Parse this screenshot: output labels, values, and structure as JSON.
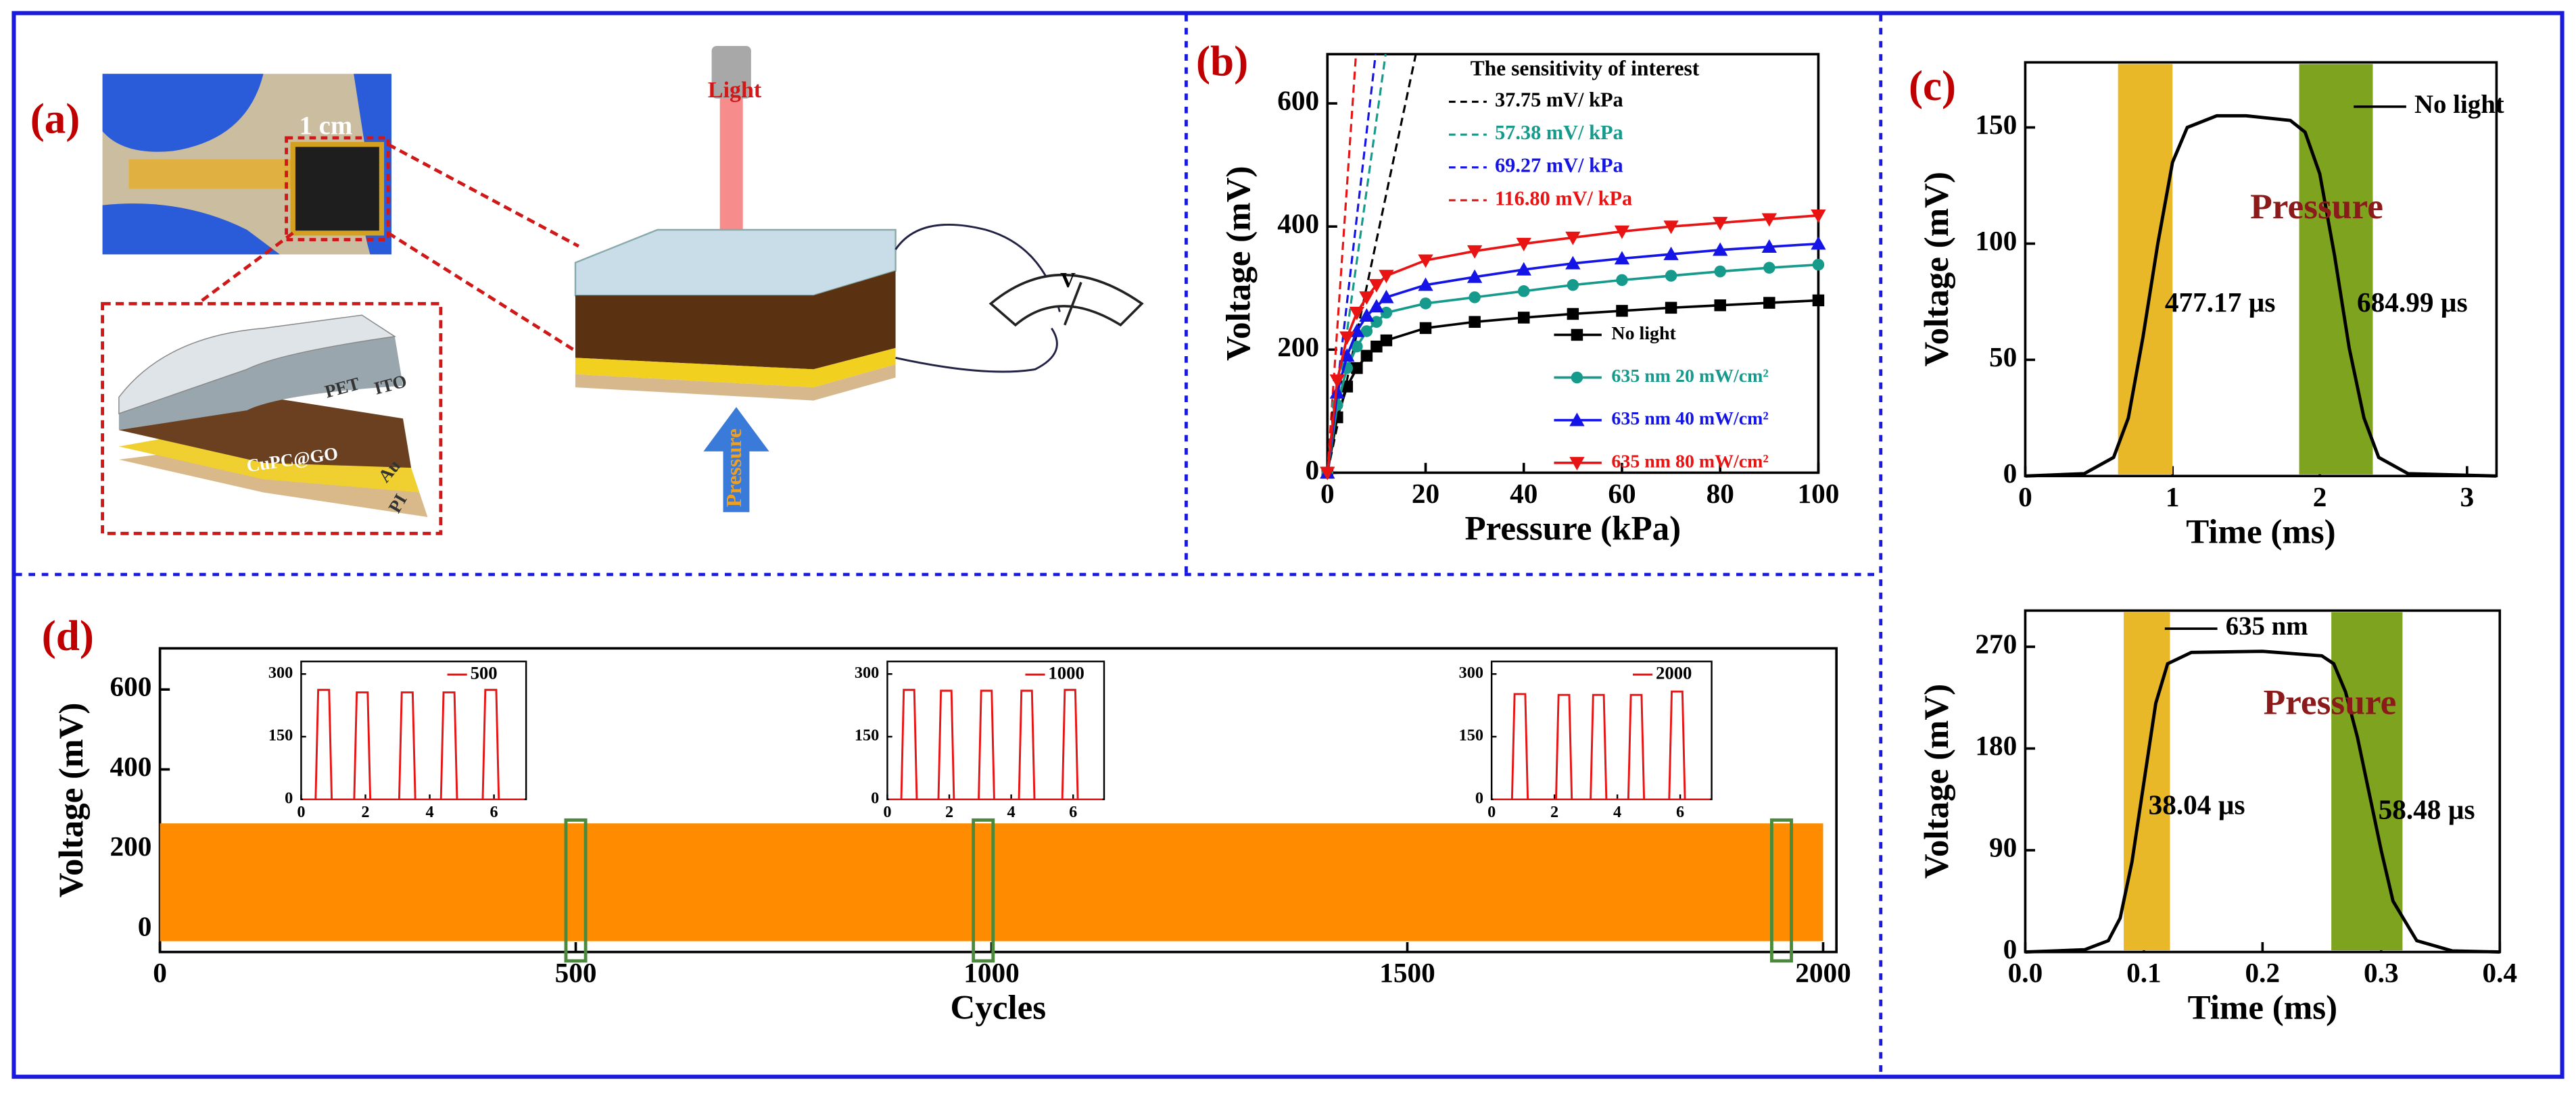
{
  "panel_a": {
    "label": "(a)",
    "scale": "1 cm",
    "light": "Light",
    "pressure": "Pressure",
    "layers": [
      "PET",
      "ITO",
      "CuPC@GO",
      "Au",
      "PI"
    ],
    "meter": "V"
  },
  "chart_data": [
    {
      "type": "line",
      "label": "(b)",
      "xlabel": "Pressure (kPa)",
      "ylabel": "Voltage (mV)",
      "xlim": [
        0,
        100
      ],
      "ylim": [
        0,
        680
      ],
      "xticks": [
        0,
        20,
        40,
        60,
        80,
        100
      ],
      "yticks": [
        0,
        200,
        400,
        600
      ],
      "x": [
        0,
        2,
        4,
        6,
        8,
        10,
        12,
        20,
        30,
        40,
        50,
        60,
        70,
        80,
        90,
        100
      ],
      "series": [
        {
          "name": "No light",
          "color": "#000000",
          "marker": "square",
          "values": [
            0,
            90,
            140,
            170,
            190,
            205,
            215,
            235,
            245,
            252,
            258,
            263,
            268,
            272,
            276,
            280
          ]
        },
        {
          "name": "635 nm 20 mW/cm²",
          "color": "#159a8c",
          "marker": "circle",
          "values": [
            0,
            110,
            170,
            205,
            230,
            245,
            260,
            275,
            285,
            295,
            305,
            313,
            320,
            327,
            333,
            338
          ]
        },
        {
          "name": "635 nm 40 mW/cm²",
          "color": "#1414e6",
          "marker": "triangle-up",
          "values": [
            0,
            130,
            190,
            230,
            255,
            270,
            285,
            305,
            318,
            330,
            340,
            348,
            355,
            362,
            367,
            372
          ]
        },
        {
          "name": "635 nm 80 mW/cm²",
          "color": "#e81414",
          "marker": "triangle-down",
          "values": [
            0,
            150,
            220,
            260,
            285,
            305,
            320,
            345,
            360,
            372,
            382,
            392,
            400,
            406,
            412,
            418
          ]
        }
      ],
      "legend": "lower right",
      "sensitivity": {
        "title": "The sensitivity of interest",
        "lines": [
          {
            "slope": {
              "value": 37.75,
              "label": "37.75 mV/ kPa"
            },
            "color": "#000000"
          },
          {
            "slope": {
              "value": 57.38,
              "label": "57.38 mV/ kPa"
            },
            "color": "#159a8c"
          },
          {
            "slope": {
              "value": 69.27,
              "label": "69.27 mV/ kPa"
            },
            "color": "#1414e6"
          },
          {
            "slope": {
              "value": 116.8,
              "label": "116.80 mV/ kPa"
            },
            "color": "#e81414"
          }
        ]
      }
    },
    {
      "type": "line",
      "label": "(c)",
      "xlabel": "Time (ms)",
      "ylabel": "Voltage (mV)",
      "xlim": [
        0,
        3.2
      ],
      "ylim": [
        0,
        178
      ],
      "xticks": [
        0,
        1,
        2,
        3
      ],
      "yticks": [
        0,
        50,
        100,
        150
      ],
      "x": [
        0,
        0.4,
        0.6,
        0.7,
        0.8,
        0.9,
        1.0,
        1.1,
        1.3,
        1.5,
        1.8,
        1.9,
        2.0,
        2.1,
        2.2,
        2.3,
        2.4,
        2.6,
        3.2
      ],
      "series": [
        {
          "name": "No light",
          "color": "#000000",
          "values": [
            0,
            1,
            8,
            25,
            60,
            100,
            135,
            150,
            155,
            155,
            153,
            148,
            130,
            95,
            55,
            25,
            8,
            1,
            0
          ]
        }
      ],
      "bands": [
        {
          "xlim": [
            0.63,
            1.0
          ],
          "color": "#e8b828"
        },
        {
          "xlim": [
            1.86,
            2.36
          ],
          "color": "#7da31f"
        }
      ],
      "annotations": [
        "Pressure",
        "477.17 µs",
        "684.99 µs"
      ]
    },
    {
      "type": "line",
      "xlabel": "Time (ms)",
      "ylabel": "Voltage (mV)",
      "xlim": [
        0,
        0.4
      ],
      "ylim": [
        0,
        302
      ],
      "xticks": [
        {
          "value": 0,
          "label": "0.0"
        },
        0.1,
        0.2,
        0.3,
        0.4
      ],
      "yticks": [
        0,
        90,
        180,
        270
      ],
      "x": [
        0,
        0.05,
        0.07,
        0.08,
        0.09,
        0.1,
        0.11,
        0.12,
        0.14,
        0.2,
        0.25,
        0.26,
        0.27,
        0.28,
        0.29,
        0.3,
        0.31,
        0.33,
        0.36,
        0.4
      ],
      "series": [
        {
          "name": "635 nm",
          "color": "#000000",
          "values": [
            0,
            2,
            10,
            30,
            80,
            150,
            220,
            255,
            265,
            266,
            262,
            255,
            230,
            190,
            140,
            90,
            45,
            10,
            1,
            0
          ]
        }
      ],
      "bands": [
        {
          "xlim": [
            0.083,
            0.122
          ],
          "color": "#e8b828"
        },
        {
          "xlim": [
            0.258,
            0.318
          ],
          "color": "#7da31f"
        }
      ],
      "annotations": [
        "Pressure",
        "38.04 µs",
        "58.48 µs"
      ]
    },
    {
      "type": "area",
      "label": "(d)",
      "xlabel": "Cycles",
      "ylabel": "Voltage (mV)",
      "xlim": [
        0,
        2016
      ],
      "ylim": [
        -57,
        703
      ],
      "xticks": [
        0,
        500,
        1000,
        1500,
        2000
      ],
      "yticks": [
        0,
        200,
        400,
        600
      ],
      "x": [
        0,
        2000
      ],
      "series": [
        {
          "color": "#ff8c00",
          "values": [
            265,
            265
          ],
          "low": [
            -30,
            -30
          ]
        }
      ],
      "highlights": [
        500,
        990,
        1950
      ],
      "highlight_color": "#4a8a3a",
      "insets": [
        {
          "xlim": [
            0,
            7
          ],
          "ylim": [
            0,
            330
          ],
          "xticks": [
            0,
            2,
            4,
            6
          ],
          "yticks": [
            0,
            150,
            300
          ],
          "series": [
            {
              "name": "500",
              "color": "#e81414",
              "x": [
                0.7,
                1.9,
                3.3,
                4.6,
                5.9
              ],
              "values": [
                262,
                256,
                256,
                256,
                262
              ]
            }
          ]
        },
        {
          "xlim": [
            0,
            7
          ],
          "ylim": [
            0,
            330
          ],
          "xticks": [
            0,
            2,
            4,
            6
          ],
          "yticks": [
            0,
            150,
            300
          ],
          "series": [
            {
              "name": "1000",
              "color": "#e81414",
              "x": [
                0.7,
                1.9,
                3.2,
                4.5,
                5.9
              ],
              "values": [
                262,
                260,
                260,
                260,
                262
              ]
            }
          ]
        },
        {
          "xlim": [
            0,
            7
          ],
          "ylim": [
            0,
            330
          ],
          "xticks": [
            0,
            2,
            4,
            6
          ],
          "yticks": [
            0,
            150,
            300
          ],
          "series": [
            {
              "name": "2000",
              "color": "#e81414",
              "x": [
                0.9,
                2.3,
                3.4,
                4.6,
                5.9
              ],
              "values": [
                252,
                250,
                250,
                250,
                258
              ]
            }
          ]
        }
      ]
    }
  ]
}
